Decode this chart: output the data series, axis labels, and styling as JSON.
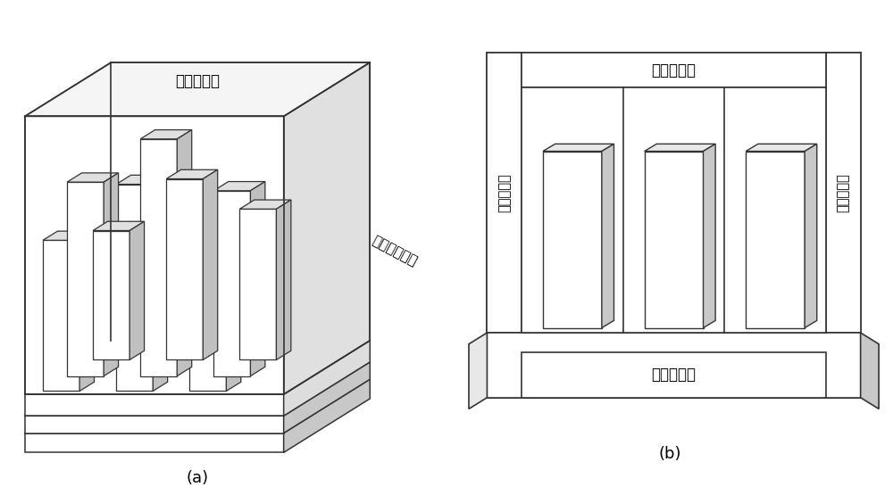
{
  "background_color": "#ffffff",
  "line_color": "#333333",
  "face_white": "#ffffff",
  "face_light": "#e8e8e8",
  "face_gray": "#c8c8c8",
  "face_dark": "#aaaaaa",
  "label_a": "(a)",
  "label_b": "(b)",
  "text_pml": "完全匹配层",
  "text_periodic": "周期边界条件",
  "text_pml_side": "完全匹配层",
  "font_size_label": 13,
  "font_size_text": 12,
  "font_size_side": 10.5
}
